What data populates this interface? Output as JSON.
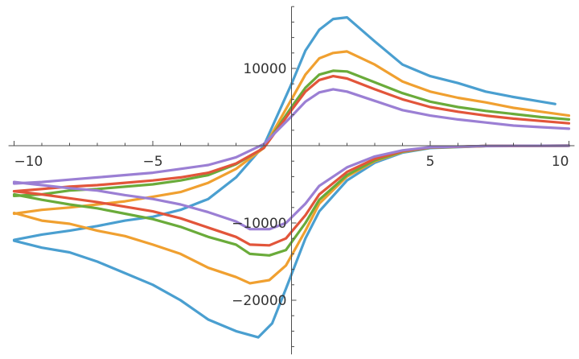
{
  "chart_data": {
    "type": "line",
    "title": "",
    "xlabel": "",
    "ylabel": "",
    "xlim": [
      -10.2,
      10.2
    ],
    "ylim": [
      -27000,
      18000
    ],
    "grid": false,
    "legend": "none",
    "x_ticks": [
      {
        "value": -10,
        "label": "−10"
      },
      {
        "value": -5,
        "label": "−5"
      },
      {
        "value": 5,
        "label": "5"
      },
      {
        "value": 10,
        "label": "10"
      }
    ],
    "y_ticks": [
      {
        "value": 10000,
        "label": "10000"
      },
      {
        "value": -10000,
        "label": "−10000"
      },
      {
        "value": -20000,
        "label": "−20000"
      }
    ],
    "series": [
      {
        "color": "#4a9fd0",
        "points": [
          [
            -10,
            -12200
          ],
          [
            -9,
            -11500
          ],
          [
            -8,
            -11000
          ],
          [
            -7,
            -10400
          ],
          [
            -6,
            -9700
          ],
          [
            -5,
            -9200
          ],
          [
            -4,
            -8300
          ],
          [
            -3,
            -6900
          ],
          [
            -2,
            -4100
          ],
          [
            -1,
            0
          ],
          [
            0,
            8000
          ],
          [
            0.5,
            12300
          ],
          [
            1,
            15000
          ],
          [
            1.5,
            16400
          ],
          [
            2,
            16600
          ],
          [
            3,
            13500
          ],
          [
            4,
            10500
          ],
          [
            5,
            9000
          ],
          [
            6,
            8100
          ],
          [
            7,
            7000
          ],
          [
            8,
            6300
          ],
          [
            9,
            5700
          ],
          [
            9.5,
            5400
          ]
        ]
      },
      {
        "color": "#4a9fd0",
        "points": [
          [
            -10,
            -12300
          ],
          [
            -9,
            -13200
          ],
          [
            -8,
            -13800
          ],
          [
            -7,
            -15000
          ],
          [
            -6,
            -16500
          ],
          [
            -5,
            -18000
          ],
          [
            -4,
            -20000
          ],
          [
            -3,
            -22500
          ],
          [
            -2,
            -24000
          ],
          [
            -1.2,
            -24800
          ],
          [
            -0.7,
            -23000
          ],
          [
            -0.2,
            -18500
          ],
          [
            0.5,
            -12000
          ],
          [
            1,
            -8500
          ],
          [
            2,
            -4500
          ],
          [
            3,
            -2200
          ],
          [
            4,
            -900
          ],
          [
            5,
            -300
          ],
          [
            7,
            -50
          ],
          [
            10,
            0
          ]
        ]
      },
      {
        "color": "#f0a030",
        "points": [
          [
            -10,
            -8800
          ],
          [
            -9,
            -8300
          ],
          [
            -8,
            -8000
          ],
          [
            -7,
            -7600
          ],
          [
            -6,
            -7200
          ],
          [
            -5,
            -6600
          ],
          [
            -4,
            -6000
          ],
          [
            -3,
            -4800
          ],
          [
            -2,
            -3000
          ],
          [
            -1,
            -300
          ],
          [
            0,
            6000
          ],
          [
            0.5,
            9200
          ],
          [
            1,
            11300
          ],
          [
            1.5,
            12000
          ],
          [
            2,
            12200
          ],
          [
            3,
            10500
          ],
          [
            4,
            8300
          ],
          [
            5,
            7000
          ],
          [
            6,
            6200
          ],
          [
            7,
            5600
          ],
          [
            8,
            4900
          ],
          [
            9,
            4400
          ],
          [
            10,
            3900
          ]
        ]
      },
      {
        "color": "#f0a030",
        "points": [
          [
            -10,
            -8700
          ],
          [
            -9,
            -9700
          ],
          [
            -8,
            -10100
          ],
          [
            -7,
            -11000
          ],
          [
            -6,
            -11700
          ],
          [
            -5,
            -12800
          ],
          [
            -4,
            -14000
          ],
          [
            -3,
            -15800
          ],
          [
            -2,
            -17000
          ],
          [
            -1.5,
            -17800
          ],
          [
            -0.8,
            -17400
          ],
          [
            -0.2,
            -15500
          ],
          [
            0.5,
            -11000
          ],
          [
            1,
            -7500
          ],
          [
            2,
            -4000
          ],
          [
            3,
            -2000
          ],
          [
            4,
            -800
          ],
          [
            5,
            -250
          ],
          [
            7,
            -40
          ],
          [
            10,
            0
          ]
        ]
      },
      {
        "color": "#6aab3a",
        "points": [
          [
            -10,
            -6500
          ],
          [
            -9,
            -6300
          ],
          [
            -8,
            -5800
          ],
          [
            -7,
            -5600
          ],
          [
            -6,
            -5300
          ],
          [
            -5,
            -5000
          ],
          [
            -4,
            -4500
          ],
          [
            -3,
            -3800
          ],
          [
            -2,
            -2400
          ],
          [
            -1,
            -300
          ],
          [
            0,
            5000
          ],
          [
            0.5,
            7500
          ],
          [
            1,
            9200
          ],
          [
            1.5,
            9700
          ],
          [
            2,
            9600
          ],
          [
            3,
            8200
          ],
          [
            4,
            6800
          ],
          [
            5,
            5700
          ],
          [
            6,
            5000
          ],
          [
            7,
            4500
          ],
          [
            8,
            4100
          ],
          [
            9,
            3700
          ],
          [
            10,
            3400
          ]
        ]
      },
      {
        "color": "#6aab3a",
        "points": [
          [
            -10,
            -6300
          ],
          [
            -9,
            -7000
          ],
          [
            -8,
            -7600
          ],
          [
            -7,
            -8100
          ],
          [
            -6,
            -8800
          ],
          [
            -5,
            -9500
          ],
          [
            -4,
            -10500
          ],
          [
            -3,
            -11800
          ],
          [
            -2,
            -12800
          ],
          [
            -1.5,
            -14000
          ],
          [
            -0.8,
            -14200
          ],
          [
            -0.2,
            -13500
          ],
          [
            0.5,
            -10000
          ],
          [
            1,
            -7000
          ],
          [
            2,
            -3800
          ],
          [
            3,
            -1900
          ],
          [
            4,
            -750
          ],
          [
            5,
            -250
          ],
          [
            7,
            -40
          ],
          [
            10,
            0
          ]
        ]
      },
      {
        "color": "#e2553a",
        "points": [
          [
            -10,
            -5900
          ],
          [
            -9,
            -5600
          ],
          [
            -8,
            -5300
          ],
          [
            -7,
            -5100
          ],
          [
            -6,
            -4800
          ],
          [
            -5,
            -4500
          ],
          [
            -4,
            -4100
          ],
          [
            -3,
            -3500
          ],
          [
            -2,
            -2300
          ],
          [
            -1,
            -300
          ],
          [
            0,
            4600
          ],
          [
            0.5,
            7000
          ],
          [
            1,
            8500
          ],
          [
            1.5,
            9000
          ],
          [
            2,
            8700
          ],
          [
            3,
            7300
          ],
          [
            4,
            6000
          ],
          [
            5,
            5000
          ],
          [
            6,
            4400
          ],
          [
            7,
            3900
          ],
          [
            8,
            3500
          ],
          [
            9,
            3200
          ],
          [
            10,
            2900
          ]
        ]
      },
      {
        "color": "#e2553a",
        "points": [
          [
            -10,
            -5900
          ],
          [
            -9,
            -6300
          ],
          [
            -8,
            -6800
          ],
          [
            -7,
            -7300
          ],
          [
            -6,
            -7900
          ],
          [
            -5,
            -8500
          ],
          [
            -4,
            -9400
          ],
          [
            -3,
            -10600
          ],
          [
            -2,
            -11800
          ],
          [
            -1.5,
            -12800
          ],
          [
            -0.8,
            -12900
          ],
          [
            -0.2,
            -12000
          ],
          [
            0.5,
            -9000
          ],
          [
            1,
            -6300
          ],
          [
            2,
            -3400
          ],
          [
            3,
            -1700
          ],
          [
            4,
            -700
          ],
          [
            5,
            -230
          ],
          [
            7,
            -40
          ],
          [
            10,
            0
          ]
        ]
      },
      {
        "color": "#9b7fd4",
        "points": [
          [
            -10,
            -4900
          ],
          [
            -9,
            -4700
          ],
          [
            -8,
            -4400
          ],
          [
            -7,
            -4100
          ],
          [
            -6,
            -3800
          ],
          [
            -5,
            -3500
          ],
          [
            -4,
            -3000
          ],
          [
            -3,
            -2500
          ],
          [
            -2,
            -1500
          ],
          [
            -1,
            200
          ],
          [
            0,
            3800
          ],
          [
            0.5,
            5700
          ],
          [
            1,
            6900
          ],
          [
            1.5,
            7300
          ],
          [
            2,
            7000
          ],
          [
            3,
            5800
          ],
          [
            4,
            4600
          ],
          [
            5,
            3900
          ],
          [
            6,
            3400
          ],
          [
            7,
            3000
          ],
          [
            8,
            2600
          ],
          [
            9,
            2400
          ],
          [
            10,
            2200
          ]
        ]
      },
      {
        "color": "#9b7fd4",
        "points": [
          [
            -10,
            -4700
          ],
          [
            -9,
            -5100
          ],
          [
            -8,
            -5500
          ],
          [
            -7,
            -5800
          ],
          [
            -6,
            -6400
          ],
          [
            -5,
            -6900
          ],
          [
            -4,
            -7600
          ],
          [
            -3,
            -8600
          ],
          [
            -2,
            -9800
          ],
          [
            -1.5,
            -10800
          ],
          [
            -0.8,
            -10800
          ],
          [
            -0.2,
            -10000
          ],
          [
            0.5,
            -7500
          ],
          [
            1,
            -5200
          ],
          [
            2,
            -2800
          ],
          [
            3,
            -1400
          ],
          [
            4,
            -600
          ],
          [
            5,
            -200
          ],
          [
            7,
            -30
          ],
          [
            10,
            0
          ]
        ]
      }
    ]
  }
}
